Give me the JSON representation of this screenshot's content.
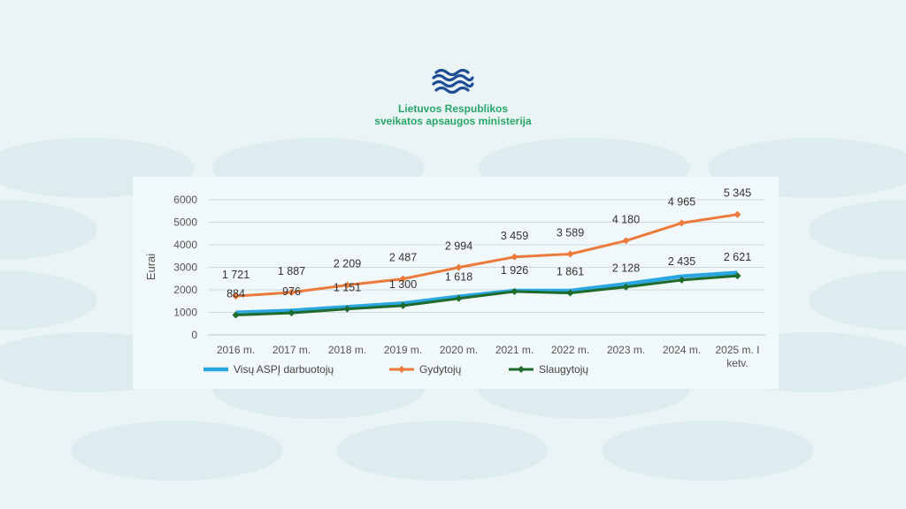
{
  "header": {
    "logo_icon": "ministry-waves-logo-icon",
    "org_line_1": "Lietuvos Respublikos",
    "org_line_2": "sveikatos apsaugos ministerija"
  },
  "colors": {
    "background": "#eaf4f5",
    "brand_green": "#2aa66a",
    "logo_blue": "#1f4e96"
  },
  "chart_data": {
    "type": "line",
    "title": "",
    "xlabel": "",
    "ylabel": "Eurai",
    "ylim": [
      0,
      6000
    ],
    "yticks": [
      0,
      1000,
      2000,
      3000,
      4000,
      5000,
      6000
    ],
    "grid": true,
    "legend_position": "bottom",
    "categories": [
      "2016 m.",
      "2017 m.",
      "2018 m.",
      "2019 m.",
      "2020 m.",
      "2021 m.",
      "2022 m.",
      "2023 m.",
      "2024 m.",
      "2025 m. I ketv."
    ],
    "series": [
      {
        "name": "Visų ASPĮ darbuotojų",
        "color": "#2aa6e0",
        "marker": "none",
        "values": [
          990,
          1080,
          1240,
          1400,
          1700,
          1960,
          1960,
          2260,
          2600,
          2760
        ]
      },
      {
        "name": "Gydytojų",
        "color": "#ec7a3b",
        "marker": "diamond",
        "values": [
          1721,
          1887,
          2209,
          2487,
          2994,
          3459,
          3589,
          4180,
          4965,
          5345
        ],
        "labels": [
          "1 721",
          "1 887",
          "2 209",
          "2 487",
          "2 994",
          "3 459",
          "3 589",
          "4 180",
          "4 965",
          "5 345"
        ]
      },
      {
        "name": "Slaugytojų",
        "color": "#1e6b2c",
        "marker": "diamond",
        "values": [
          884,
          976,
          1151,
          1300,
          1618,
          1926,
          1861,
          2128,
          2435,
          2621
        ],
        "labels": [
          "884",
          "976",
          "1 151",
          "1 300",
          "1 618",
          "1 926",
          "1 861",
          "2 128",
          "2 435",
          "2 621"
        ]
      }
    ]
  }
}
